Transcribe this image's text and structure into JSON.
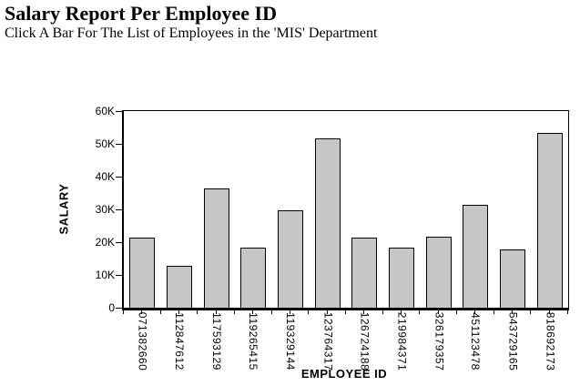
{
  "header": {
    "title": "Salary Report Per Employee ID",
    "subtitle": "Click A Bar For The List of Employees in the 'MIS' Department"
  },
  "chart_data": {
    "type": "bar",
    "title": "Salary Report Per Employee ID",
    "subtitle": "Click A Bar For The List of Employees in the 'MIS' Department",
    "categories": [
      "071382660",
      "112847612",
      "117593129",
      "119265415",
      "119329144",
      "123764317",
      "126724188",
      "219984371",
      "326179357",
      "451123478",
      "543729165",
      "818692173"
    ],
    "values": [
      21000,
      12500,
      36000,
      18000,
      29500,
      51500,
      21000,
      18000,
      21500,
      31000,
      17500,
      53000
    ],
    "xlabel": "EMPLOYEE ID",
    "ylabel": "SALARY",
    "ylim": [
      0,
      60000
    ],
    "ytick_labels": [
      "0",
      "10K",
      "20K",
      "30K",
      "40K",
      "50K",
      "60K"
    ],
    "grid": false,
    "legend": "none",
    "bar_fill_color": "#c6c6c6",
    "bar_border_color": "#000000",
    "frame_color": "#000000",
    "background_color": "#ffffff"
  }
}
